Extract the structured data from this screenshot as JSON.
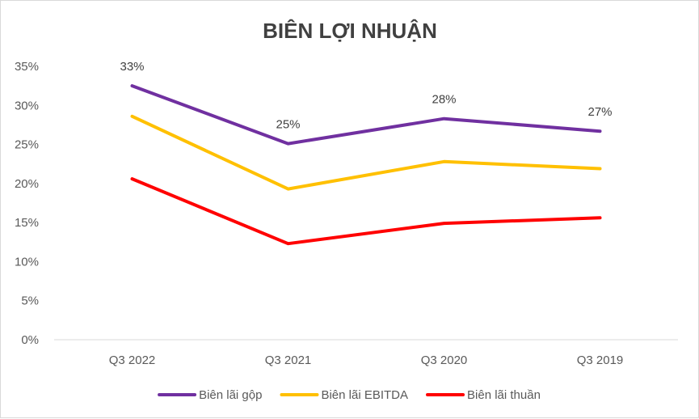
{
  "chart_data": {
    "type": "line",
    "title": "BIÊN LỢI NHUẬN",
    "categories": [
      "Q3 2022",
      "Q3 2021",
      "Q3 2020",
      "Q3 2019"
    ],
    "y_ticks": [
      "0%",
      "5%",
      "10%",
      "15%",
      "20%",
      "25%",
      "30%",
      "35%"
    ],
    "ylim": [
      0,
      35
    ],
    "grid": false,
    "legend_position": "bottom",
    "series": [
      {
        "name": "Biên lãi gộp",
        "color": "#7030A0",
        "values": [
          32.5,
          25.1,
          28.3,
          26.7
        ],
        "data_labels": [
          "33%",
          "25%",
          "28%",
          "27%"
        ]
      },
      {
        "name": "Biên lãi EBITDA",
        "color": "#FFC000",
        "values": [
          28.6,
          19.3,
          22.8,
          21.9
        ]
      },
      {
        "name": "Biên lãi thuần",
        "color": "#FF0000",
        "values": [
          20.6,
          12.3,
          14.9,
          15.6
        ]
      }
    ]
  }
}
